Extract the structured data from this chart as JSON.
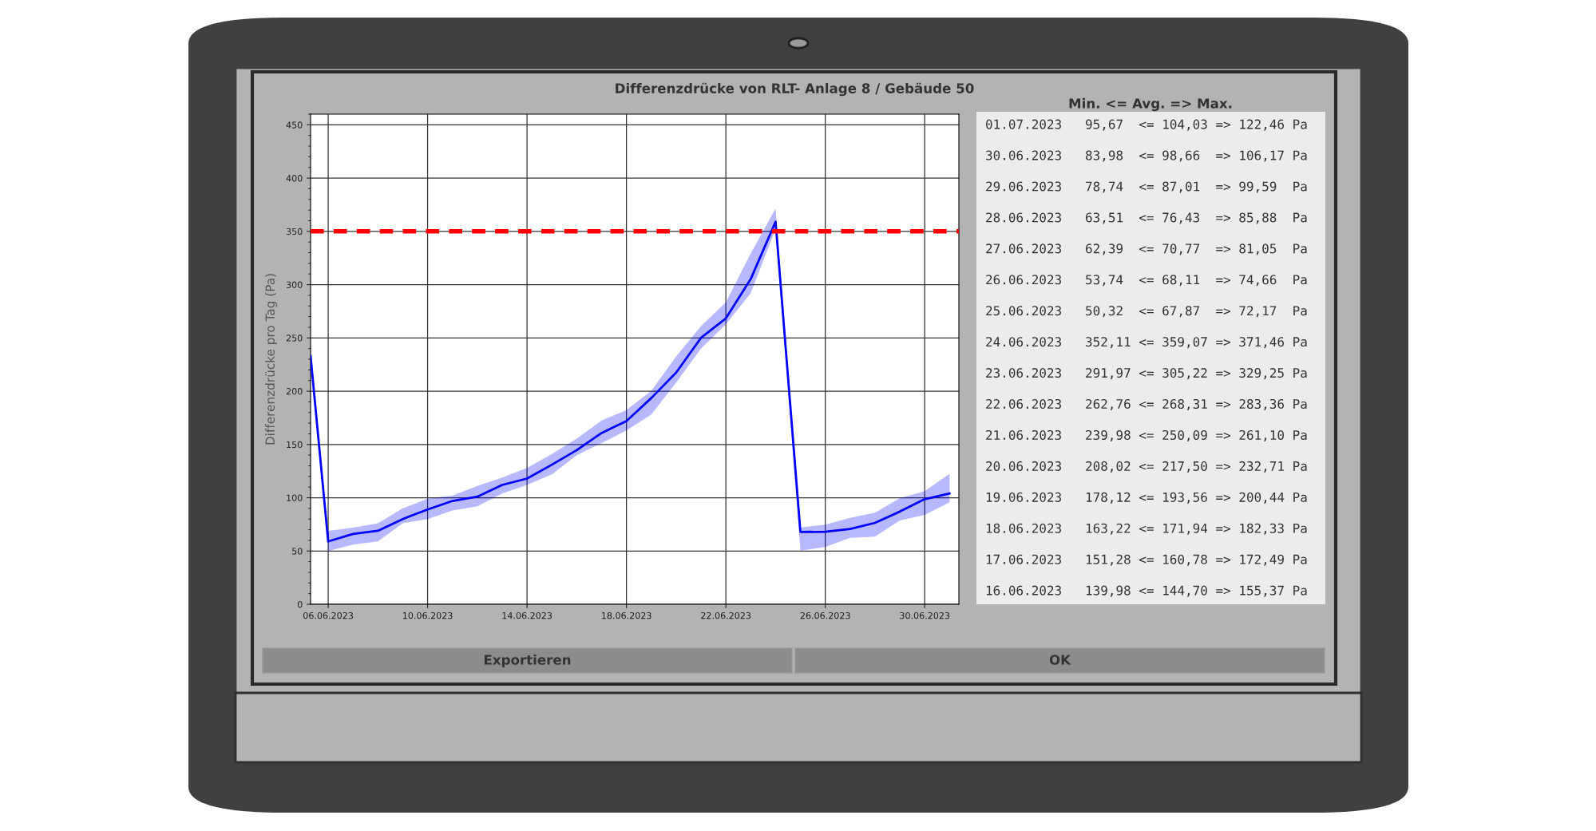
{
  "chart_data": {
    "type": "line",
    "title": "Differenzdrücke von RLT- Anlage 8 / Gebäude 50",
    "ylabel": "Differenzdrücke pro Tag (Pa)",
    "x": [
      "2023-06-05T07:00",
      "2023-06-06",
      "2023-06-07",
      "2023-06-08",
      "2023-06-09",
      "2023-06-10",
      "2023-06-11",
      "2023-06-12",
      "2023-06-13",
      "2023-06-14",
      "2023-06-15",
      "2023-06-16",
      "2023-06-17",
      "2023-06-18",
      "2023-06-19",
      "2023-06-20",
      "2023-06-21",
      "2023-06-22",
      "2023-06-23",
      "2023-06-24",
      "2023-06-25",
      "2023-06-26",
      "2023-06-27",
      "2023-06-28",
      "2023-06-29",
      "2023-06-30",
      "2023-07-01"
    ],
    "series": [
      {
        "color": "#0000ff",
        "values": [
          233,
          59,
          66,
          69,
          80,
          89,
          97,
          101,
          112,
          118,
          131,
          144.7,
          160.78,
          171.94,
          193.56,
          217.5,
          250.09,
          268.31,
          305.22,
          359.07,
          67.87,
          68.11,
          70.77,
          76.43,
          87.01,
          98.66,
          104.03
        ],
        "lower": [
          null,
          50,
          56,
          59,
          76,
          80,
          88,
          92,
          104,
          112,
          122,
          139.98,
          151.28,
          163.22,
          178.12,
          208.02,
          239.98,
          262.76,
          291.97,
          352.11,
          50.32,
          53.74,
          62.39,
          63.51,
          78.74,
          83.98,
          95.67
        ],
        "upper": [
          null,
          69,
          72,
          76,
          90,
          99,
          102,
          111,
          119,
          128,
          141,
          155.37,
          172.49,
          182.33,
          200.44,
          232.71,
          261.1,
          283.36,
          329.25,
          371.46,
          72.17,
          74.66,
          81.05,
          85.88,
          99.59,
          106.17,
          122.46
        ]
      }
    ],
    "xlim": [
      "2023-06-05T07:00",
      "2023-07-01T09:00"
    ],
    "xticks": [
      {
        "value": "2023-06-06",
        "label": "06.06.2023"
      },
      {
        "value": "2023-06-10",
        "label": "10.06.2023"
      },
      {
        "value": "2023-06-14",
        "label": "14.06.2023"
      },
      {
        "value": "2023-06-18",
        "label": "18.06.2023"
      },
      {
        "value": "2023-06-22",
        "label": "22.06.2023"
      },
      {
        "value": "2023-06-26",
        "label": "26.06.2023"
      },
      {
        "value": "2023-06-30",
        "label": "30.06.2023"
      }
    ],
    "ylim": [
      0,
      460
    ],
    "yticks": [
      0,
      50,
      100,
      150,
      200,
      250,
      300,
      350,
      400,
      450
    ],
    "grid": true,
    "line_style": "solid",
    "marker": "none",
    "ref_lines": [
      {
        "axis": "y",
        "value": 350,
        "label": null,
        "color": "#ff0000",
        "line_style": "dashed"
      }
    ],
    "annotations": [
      "Min. <= Avg. => Max.",
      "01.07.2023   95,67  <= 104,03 => 122,46 Pa",
      "30.06.2023   83,98  <= 98,66  => 106,17 Pa",
      "29.06.2023   78,74  <= 87,01  => 99,59  Pa",
      "28.06.2023   63,51  <= 76,43  => 85,88  Pa",
      "27.06.2023   62,39  <= 70,77  => 81,05  Pa",
      "26.06.2023   53,74  <= 68,11  => 74,66  Pa",
      "25.06.2023   50,32  <= 67,87  => 72,17  Pa",
      "24.06.2023   352,11 <= 359,07 => 371,46 Pa",
      "23.06.2023   291,97 <= 305,22 => 329,25 Pa",
      "22.06.2023   262,76 <= 268,31 => 283,36 Pa",
      "21.06.2023   239,98 <= 250,09 => 261,10 Pa",
      "20.06.2023   208,02 <= 217,50 => 232,71 Pa",
      "19.06.2023   178,12 <= 193,56 => 200,44 Pa",
      "18.06.2023   163,22 <= 171,94 => 182,33 Pa",
      "17.06.2023   151,28 <= 160,78 => 172,49 Pa",
      "16.06.2023   139,98 <= 144,70 => 155,37 Pa",
      "Exportieren",
      "OK"
    ]
  }
}
